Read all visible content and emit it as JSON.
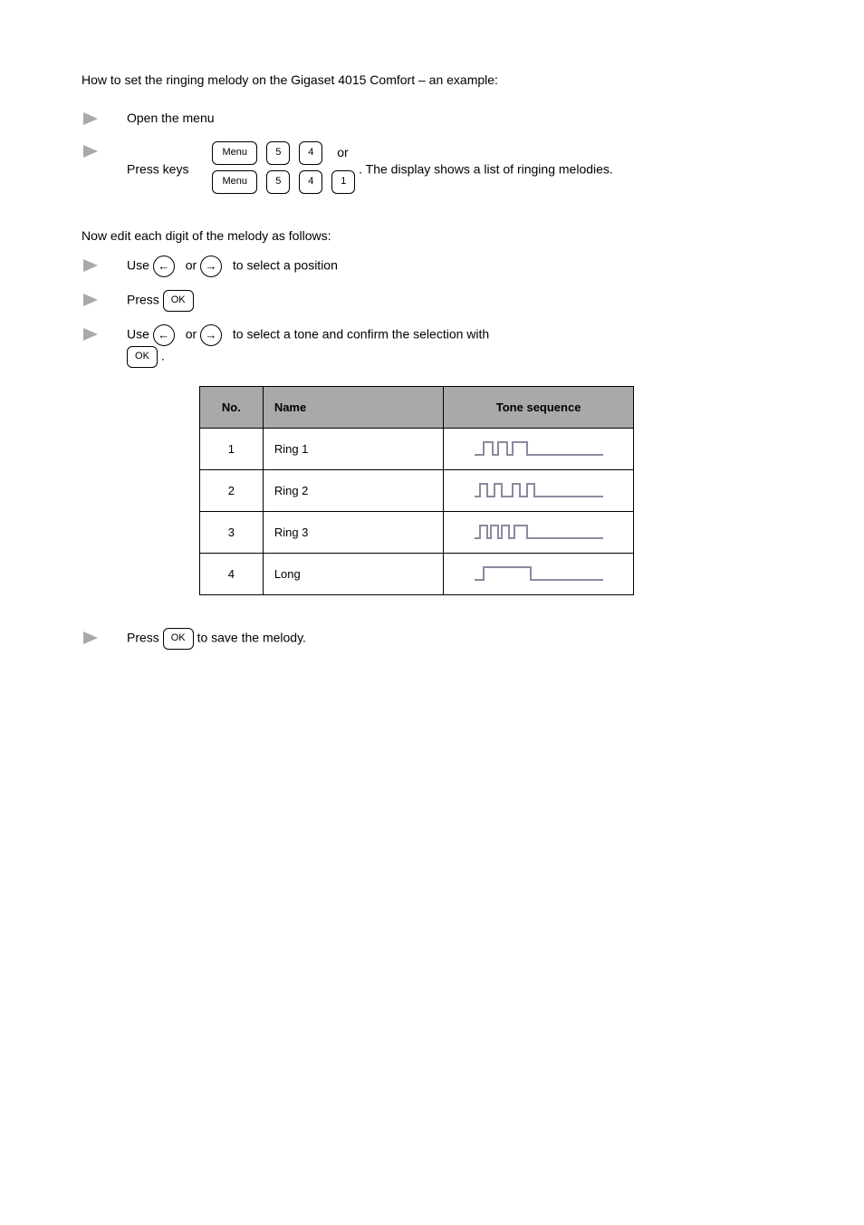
{
  "intro": {
    "line1": "How to set the ringing melody on the Gigaset 4015 Comfort – an example:",
    "step1": "Open the menu",
    "step2_pre": "Press keys",
    "step2_post": "or",
    "step2_end": ". The display shows a list of ringing melodies.",
    "edit_instructions_lead": "Now edit each digit of the melody as follows:",
    "step3_pre": "Use",
    "step3_mid": "or",
    "step3_post": "to select a position",
    "step4_pre": "Press",
    "step4_post": "",
    "step5_pre": "Use",
    "step5_mid": "or",
    "step5_post": "to select a tone and confirm the selection with",
    "step5_end": "."
  },
  "table": {
    "headers": {
      "no": "No.",
      "name": "Name",
      "seq": "Tone sequence"
    },
    "rows": [
      {
        "no": "1",
        "name": "Ring 1"
      },
      {
        "no": "2",
        "name": "Ring 2"
      },
      {
        "no": "3",
        "name": "Ring 3"
      },
      {
        "no": "4",
        "name": "Long"
      }
    ],
    "waveform_color": "#8a8aa0",
    "waveforms": {
      "ring1": {
        "pulses": [
          [
            14,
            24
          ],
          [
            30,
            40
          ],
          [
            46,
            62
          ]
        ],
        "baseline": 20,
        "high": 6,
        "length": 150
      },
      "ring2": {
        "pulses": [
          [
            10,
            18
          ],
          [
            26,
            34
          ],
          [
            46,
            54
          ],
          [
            62,
            70
          ]
        ],
        "baseline": 20,
        "high": 6,
        "length": 150
      },
      "ring3": {
        "pulses": [
          [
            10,
            18
          ],
          [
            22,
            30
          ],
          [
            34,
            42
          ],
          [
            48,
            62
          ]
        ],
        "baseline": 20,
        "high": 6,
        "length": 150
      },
      "long": {
        "pulses": [
          [
            14,
            66
          ]
        ],
        "baseline": 20,
        "high": 6,
        "length": 150
      }
    }
  },
  "final": {
    "pre": "Press",
    "post": "to save the melody."
  },
  "keys": {
    "menu": "Menu",
    "ok": "OK"
  }
}
